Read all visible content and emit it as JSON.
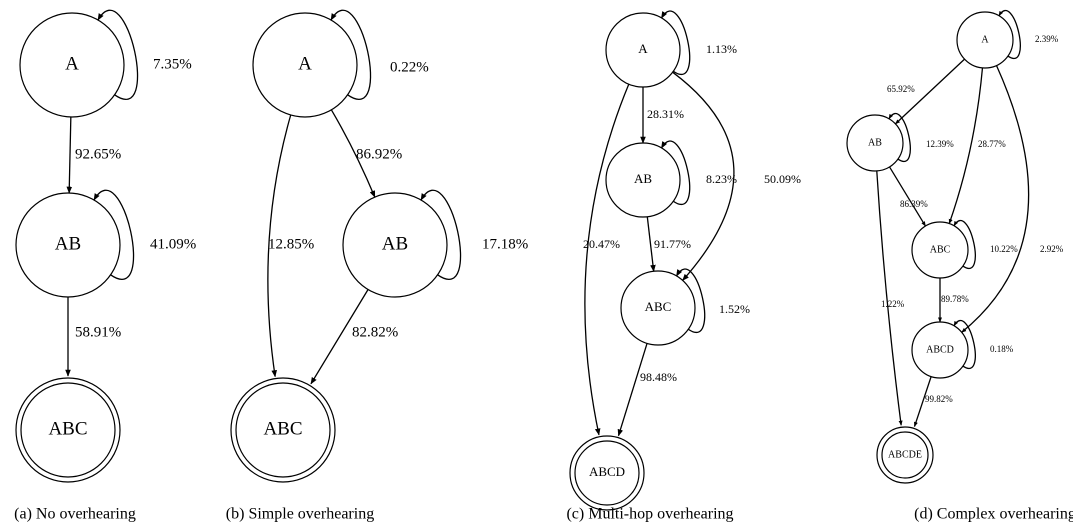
{
  "diagrams": [
    {
      "caption": "(a)  No overhearing",
      "nodes": [
        {
          "label": "A"
        },
        {
          "label": "AB"
        },
        {
          "label": "ABC"
        }
      ],
      "edges": [
        {
          "label": "7.35%"
        },
        {
          "label": "92.65%"
        },
        {
          "label": "41.09%"
        },
        {
          "label": "58.91%"
        }
      ]
    },
    {
      "caption": "(b)  Simple overhearing",
      "nodes": [
        {
          "label": "A"
        },
        {
          "label": "AB"
        },
        {
          "label": "ABC"
        }
      ],
      "edges": [
        {
          "label": "0.22%"
        },
        {
          "label": "86.92%"
        },
        {
          "label": "12.85%"
        },
        {
          "label": "17.18%"
        },
        {
          "label": "82.82%"
        }
      ]
    },
    {
      "caption": "(c)  Multi-hop overhearing",
      "nodes": [
        {
          "label": "A"
        },
        {
          "label": "AB"
        },
        {
          "label": "ABC"
        },
        {
          "label": "ABCD"
        }
      ],
      "edges": [
        {
          "label": "1.13%"
        },
        {
          "label": "28.31%"
        },
        {
          "label": "8.23%"
        },
        {
          "label": "50.09%"
        },
        {
          "label": "20.47%"
        },
        {
          "label": "91.77%"
        },
        {
          "label": "1.52%"
        },
        {
          "label": "98.48%"
        }
      ]
    },
    {
      "caption": "(d)  Complex overhearing",
      "nodes": [
        {
          "label": "A"
        },
        {
          "label": "AB"
        },
        {
          "label": "ABC"
        },
        {
          "label": "ABCD"
        },
        {
          "label": "ABCDE"
        }
      ],
      "edges": [
        {
          "label": "2.39%"
        },
        {
          "label": "65.92%"
        },
        {
          "label": "12.39%"
        },
        {
          "label": "28.77%"
        },
        {
          "label": "86.39%"
        },
        {
          "label": "2.92%"
        },
        {
          "label": "10.22%"
        },
        {
          "label": "1.22%"
        },
        {
          "label": "89.78%"
        },
        {
          "label": "0.18%"
        },
        {
          "label": "99.82%"
        }
      ]
    }
  ]
}
